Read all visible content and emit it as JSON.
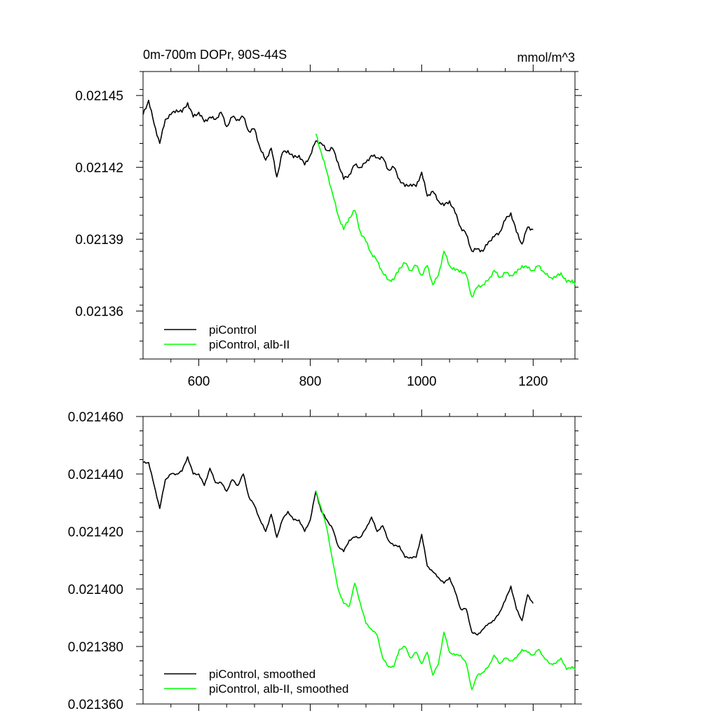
{
  "chart_data": [
    {
      "type": "line",
      "title": "0m-700m DOPr, 90S-44S",
      "units": "mmol/m^3",
      "xlim": [
        500,
        1275
      ],
      "ylim": [
        0.02134,
        0.02146
      ],
      "xticks": [
        600,
        800,
        1000,
        1200
      ],
      "xtick_labels": [
        "600",
        "800",
        "1000",
        "1200"
      ],
      "yticks": [
        0.02136,
        0.02139,
        0.02142,
        0.02145
      ],
      "ytick_labels": [
        "0.02136",
        "0.02139",
        "0.02142",
        "0.02145"
      ],
      "legend": {
        "placement": "bottom-left",
        "entries": [
          "piControl",
          "piControl, alb-II"
        ]
      },
      "series": [
        {
          "name": "piControl",
          "color": "#000000",
          "x": [
            500,
            510,
            520,
            530,
            540,
            550,
            560,
            570,
            580,
            590,
            600,
            610,
            620,
            630,
            640,
            650,
            660,
            670,
            680,
            690,
            700,
            710,
            720,
            730,
            740,
            750,
            760,
            770,
            780,
            790,
            800,
            810,
            820,
            830,
            840,
            850,
            860,
            870,
            880,
            890,
            900,
            910,
            920,
            930,
            940,
            950,
            960,
            970,
            980,
            990,
            1000,
            1010,
            1020,
            1030,
            1040,
            1050,
            1060,
            1070,
            1080,
            1090,
            1100,
            1110,
            1120,
            1130,
            1140,
            1150,
            1160,
            1170,
            1180,
            1190,
            1200
          ],
          "y": [
            0.021442,
            0.021448,
            0.021438,
            0.02143,
            0.02144,
            0.021442,
            0.021444,
            0.021443,
            0.021447,
            0.021441,
            0.021443,
            0.021439,
            0.021441,
            0.02144,
            0.021443,
            0.021437,
            0.021441,
            0.02144,
            0.021441,
            0.021435,
            0.021436,
            0.021428,
            0.021423,
            0.021428,
            0.021416,
            0.021426,
            0.021427,
            0.021424,
            0.021425,
            0.021421,
            0.021425,
            0.021431,
            0.02143,
            0.021427,
            0.021428,
            0.021422,
            0.021415,
            0.021417,
            0.021421,
            0.02142,
            0.021422,
            0.021425,
            0.021424,
            0.021424,
            0.021419,
            0.02142,
            0.021415,
            0.021412,
            0.021413,
            0.021412,
            0.021418,
            0.021408,
            0.02141,
            0.021406,
            0.021404,
            0.021406,
            0.021401,
            0.021395,
            0.021392,
            0.021385,
            0.021386,
            0.021385,
            0.021389,
            0.021391,
            0.021393,
            0.021398,
            0.021401,
            0.021393,
            0.021388,
            0.021395,
            0.021394
          ]
        },
        {
          "name": "piControl, alb-II",
          "color": "#00ff00",
          "x": [
            810,
            820,
            830,
            840,
            850,
            860,
            870,
            880,
            890,
            900,
            910,
            920,
            930,
            940,
            950,
            960,
            970,
            980,
            990,
            1000,
            1010,
            1020,
            1030,
            1040,
            1050,
            1060,
            1070,
            1080,
            1090,
            1100,
            1110,
            1120,
            1130,
            1140,
            1150,
            1160,
            1170,
            1180,
            1190,
            1200,
            1210,
            1220,
            1230,
            1240,
            1250,
            1260,
            1270,
            1275
          ],
          "y": [
            0.021434,
            0.021426,
            0.021418,
            0.021409,
            0.0214,
            0.021394,
            0.021399,
            0.021402,
            0.021393,
            0.021389,
            0.021384,
            0.021381,
            0.021376,
            0.021373,
            0.021373,
            0.021378,
            0.02138,
            0.021377,
            0.021379,
            0.021375,
            0.021379,
            0.021371,
            0.021375,
            0.021385,
            0.021379,
            0.021377,
            0.021377,
            0.021375,
            0.021366,
            0.02137,
            0.021371,
            0.021373,
            0.021377,
            0.021374,
            0.021376,
            0.021375,
            0.021376,
            0.021379,
            0.021378,
            0.021377,
            0.021379,
            0.021376,
            0.021374,
            0.021374,
            0.021376,
            0.021372,
            0.021373,
            0.021371
          ]
        }
      ]
    },
    {
      "type": "line",
      "xlim": [
        500,
        1275
      ],
      "ylim": [
        0.02136,
        0.02146
      ],
      "xticks": [
        600,
        800,
        1000,
        1200
      ],
      "yticks": [
        0.02136,
        0.02138,
        0.0214,
        0.02142,
        0.02144,
        0.02146
      ],
      "ytick_labels": [
        "0.021360",
        "0.021380",
        "0.021400",
        "0.021420",
        "0.021440",
        "0.021460"
      ],
      "legend": {
        "placement": "bottom-left",
        "entries": [
          "piControl, smoothed",
          "piControl, alb-II, smoothed"
        ]
      },
      "series": [
        {
          "name": "piControl, smoothed",
          "color": "#000000",
          "x": [
            500,
            510,
            520,
            530,
            540,
            550,
            560,
            570,
            580,
            590,
            600,
            610,
            620,
            630,
            640,
            650,
            660,
            670,
            680,
            690,
            700,
            710,
            720,
            730,
            740,
            750,
            760,
            770,
            780,
            790,
            800,
            810,
            820,
            830,
            840,
            850,
            860,
            870,
            880,
            890,
            900,
            910,
            920,
            930,
            940,
            950,
            960,
            970,
            980,
            990,
            1000,
            1010,
            1020,
            1030,
            1040,
            1050,
            1060,
            1070,
            1080,
            1090,
            1100,
            1110,
            1120,
            1130,
            1140,
            1150,
            1160,
            1170,
            1180,
            1190,
            1200
          ],
          "y": [
            0.021444,
            0.021444,
            0.021436,
            0.021428,
            0.021438,
            0.02144,
            0.02144,
            0.021441,
            0.021446,
            0.02144,
            0.02144,
            0.021436,
            0.021442,
            0.021437,
            0.021437,
            0.021434,
            0.021438,
            0.021436,
            0.02144,
            0.021432,
            0.021429,
            0.021424,
            0.02142,
            0.021426,
            0.021418,
            0.021424,
            0.021427,
            0.021424,
            0.021424,
            0.02142,
            0.021424,
            0.021434,
            0.021427,
            0.021424,
            0.021421,
            0.021415,
            0.021413,
            0.021417,
            0.021418,
            0.021418,
            0.021421,
            0.021425,
            0.02142,
            0.021422,
            0.021417,
            0.021415,
            0.021415,
            0.021411,
            0.021411,
            0.021411,
            0.021419,
            0.021408,
            0.021406,
            0.021404,
            0.021402,
            0.021404,
            0.021399,
            0.021393,
            0.021393,
            0.021385,
            0.021384,
            0.021386,
            0.021388,
            0.021389,
            0.021392,
            0.021396,
            0.021401,
            0.021393,
            0.021389,
            0.021398,
            0.021395
          ]
        },
        {
          "name": "piControl, alb-II, smoothed",
          "color": "#00ff00",
          "x": [
            810,
            820,
            830,
            840,
            850,
            860,
            870,
            880,
            890,
            900,
            910,
            920,
            930,
            940,
            950,
            960,
            970,
            980,
            990,
            1000,
            1010,
            1020,
            1030,
            1040,
            1050,
            1060,
            1070,
            1080,
            1090,
            1100,
            1110,
            1120,
            1130,
            1140,
            1150,
            1160,
            1170,
            1180,
            1190,
            1200,
            1210,
            1220,
            1230,
            1240,
            1250,
            1260,
            1270,
            1275
          ],
          "y": [
            0.021434,
            0.021428,
            0.021421,
            0.02141,
            0.0214,
            0.021395,
            0.021394,
            0.021402,
            0.021395,
            0.021388,
            0.021386,
            0.021384,
            0.021376,
            0.021373,
            0.021373,
            0.021379,
            0.02138,
            0.021376,
            0.021378,
            0.021374,
            0.021378,
            0.02137,
            0.021374,
            0.021385,
            0.021378,
            0.021377,
            0.021377,
            0.021374,
            0.021365,
            0.02137,
            0.021371,
            0.021373,
            0.021377,
            0.021374,
            0.021376,
            0.021375,
            0.021376,
            0.021379,
            0.021378,
            0.021377,
            0.021379,
            0.021376,
            0.021374,
            0.021374,
            0.021376,
            0.021372,
            0.021373,
            0.021372
          ]
        }
      ]
    }
  ]
}
